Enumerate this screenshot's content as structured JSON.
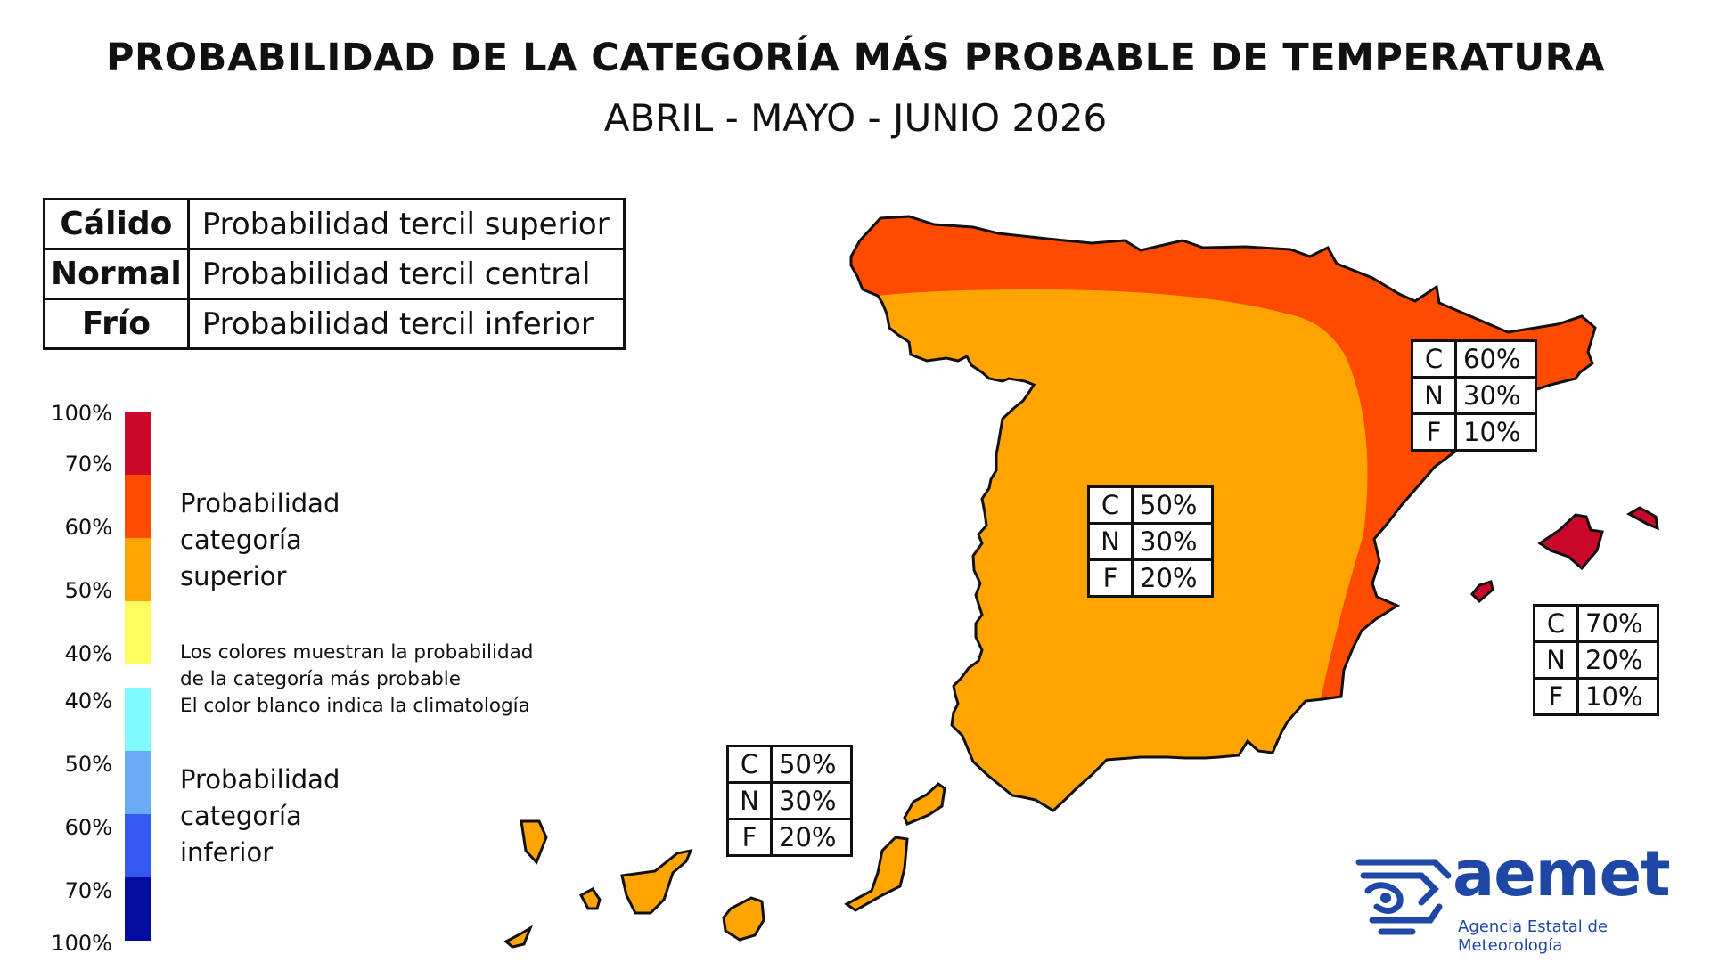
{
  "header": {
    "title": "PROBABILIDAD DE LA CATEGORÍA MÁS PROBABLE DE TEMPERATURA",
    "subtitle": "ABRIL - MAYO - JUNIO 2026"
  },
  "categories": [
    {
      "name": "Cálido",
      "description": "Probabilidad tercil superior"
    },
    {
      "name": "Normal",
      "description": "Probabilidad tercil central"
    },
    {
      "name": "Frío",
      "description": "Probabilidad tercil inferior"
    }
  ],
  "scale": {
    "labels": [
      "100%",
      "70%",
      "60%",
      "50%",
      "40%",
      "40%",
      "50%",
      "60%",
      "70%",
      "100%"
    ],
    "colors_upper": [
      "#c9082a",
      "#ff4b00",
      "#ffa400",
      "#fefc5e"
    ],
    "colors_lower": [
      "#7ffbff",
      "#6aabf4",
      "#3558f2",
      "#000d9f"
    ]
  },
  "legend": {
    "upper_heading": [
      "Probabilidad",
      "categoría",
      "superior"
    ],
    "note": [
      "Los colores muestran la probabilidad",
      "de la categoría más probable",
      "El color blanco indica la climatología"
    ],
    "lower_heading": [
      "Probabilidad",
      "categoría",
      "inferior"
    ]
  },
  "map_colors": {
    "interior": "#ffa400",
    "coastal_north_east": "#ff4b00",
    "baleares": "#c9082a",
    "canarias": "#ffa400",
    "outline": "#111111"
  },
  "regions": [
    {
      "id": "peninsula-interior",
      "rows": [
        {
          "k": "C",
          "v": "50%"
        },
        {
          "k": "N",
          "v": "30%"
        },
        {
          "k": "F",
          "v": "20%"
        }
      ]
    },
    {
      "id": "noreste",
      "rows": [
        {
          "k": "C",
          "v": "60%"
        },
        {
          "k": "N",
          "v": "30%"
        },
        {
          "k": "F",
          "v": "10%"
        }
      ]
    },
    {
      "id": "baleares",
      "rows": [
        {
          "k": "C",
          "v": "70%"
        },
        {
          "k": "N",
          "v": "20%"
        },
        {
          "k": "F",
          "v": "10%"
        }
      ]
    },
    {
      "id": "canarias",
      "rows": [
        {
          "k": "C",
          "v": "50%"
        },
        {
          "k": "N",
          "v": "30%"
        },
        {
          "k": "F",
          "v": "20%"
        }
      ]
    }
  ],
  "logo": {
    "name": "aemet",
    "tagline": "Agencia Estatal de Meteorología"
  }
}
